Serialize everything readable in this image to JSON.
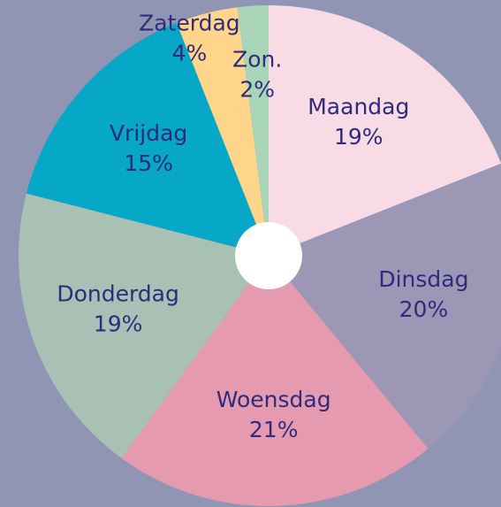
{
  "chart_data": {
    "type": "pie",
    "categories": [
      "Maandag",
      "Dinsdag",
      "Woensdag",
      "Donderdag",
      "Vrijdag",
      "Zaterdag",
      "Zon."
    ],
    "values": [
      19,
      20,
      21,
      19,
      15,
      4,
      2
    ],
    "value_labels": [
      "19%",
      "20%",
      "21%",
      "19%",
      "15%",
      "4%",
      "2%"
    ],
    "colors": [
      "#f9dbe6",
      "#9c97b5",
      "#e59ab0",
      "#a9c1b5",
      "#06a7c7",
      "#fed58a",
      "#a8d5b8"
    ]
  }
}
